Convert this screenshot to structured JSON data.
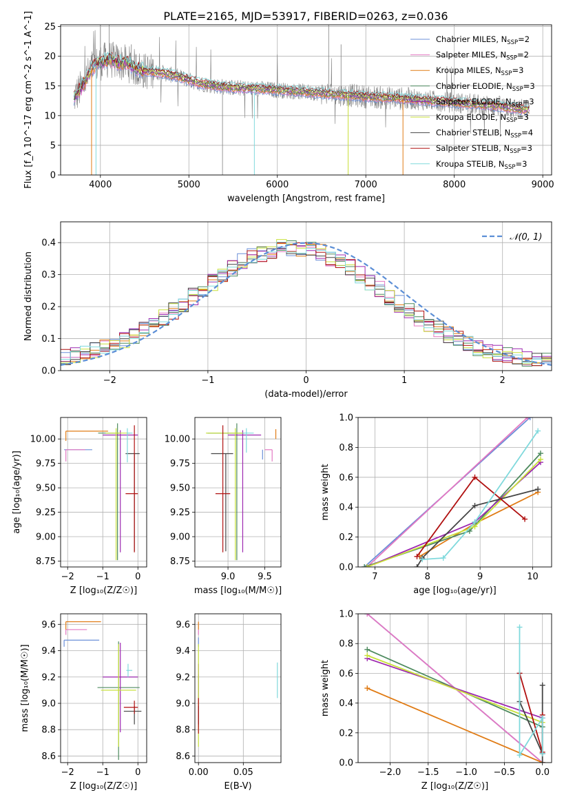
{
  "figure_title": "PLATE=2165, MJD=53917, FIBERID=0263, z=0.036",
  "colors": {
    "Chabrier MILES": "#6a8fd8",
    "Salpeter MILES": "#e377c2",
    "Kroupa MILES": "#e07b14",
    "Chabrier ELODIE": "#4d8a5e",
    "Salpeter ELODIE": "#9c27b0",
    "Kroupa ELODIE": "#c8e03a",
    "Chabrier STELIB": "#444444",
    "Salpeter STELIB": "#b01010",
    "Kroupa STELIB": "#7fd9dc",
    "data": "#7f7f7f",
    "gaussian": "#5b8ed6",
    "grid": "#b0b0b0"
  },
  "chart_data": [
    {
      "id": "spectrum",
      "type": "line",
      "title": "PLATE=2165, MJD=53917, FIBERID=0263, z=0.036",
      "xlabel": "wavelength [Angstrom, rest frame]",
      "ylabel": "Flux [f_λ 10^-17 erg cm^-2 s^-1 A^-1]",
      "xlim": [
        3550,
        9100
      ],
      "ylim": [
        0,
        25.3
      ],
      "xticks": [
        4000,
        5000,
        6000,
        7000,
        8000,
        9000
      ],
      "yticks": [
        0,
        5,
        10,
        15,
        20,
        25
      ],
      "legend": "top-right",
      "legend_entries": [
        {
          "label": "Chabrier MILES, N",
          "sub": "SSP",
          "tail": "=2"
        },
        {
          "label": "Salpeter MILES, N",
          "sub": "SSP",
          "tail": "=2"
        },
        {
          "label": "Kroupa MILES, N",
          "sub": "SSP",
          "tail": "=3"
        },
        {
          "label": "Chabrier ELODIE, N",
          "sub": "SSP",
          "tail": "=3"
        },
        {
          "label": "Salpeter ELODIE, N",
          "sub": "SSP",
          "tail": "=3"
        },
        {
          "label": "Kroupa ELODIE, N",
          "sub": "SSP",
          "tail": "=3"
        },
        {
          "label": "Chabrier STELIB, N",
          "sub": "SSP",
          "tail": "=4"
        },
        {
          "label": "Salpeter STELIB, N",
          "sub": "SSP",
          "tail": "=3"
        },
        {
          "label": "Kroupa STELIB, N",
          "sub": "SSP",
          "tail": "=3"
        }
      ],
      "continuum": {
        "x": [
          3700,
          3800,
          3900,
          4000,
          4100,
          4200,
          4300,
          4400,
          4500,
          4700,
          4900,
          5100,
          5300,
          5500,
          5800,
          6100,
          6500,
          7000,
          7500,
          8000,
          8500,
          8800
        ],
        "y": [
          13,
          15,
          18,
          19,
          19.5,
          19,
          18.8,
          18,
          17.5,
          17.2,
          16.5,
          15.5,
          15,
          14.7,
          14.5,
          14.2,
          13.8,
          13.2,
          12.8,
          12.2,
          11.6,
          11
        ]
      },
      "model_dropouts": [
        {
          "series": "Kroupa MILES",
          "x": 3900
        },
        {
          "series": "Kroupa ELODIE",
          "x": 6800
        },
        {
          "series": "Kroupa MILES",
          "x": 7420
        },
        {
          "series": "Kroupa STELIB",
          "x": 5740
        },
        {
          "series": "Kroupa STELIB",
          "x": 3950
        }
      ]
    },
    {
      "id": "residuals",
      "type": "line",
      "xlabel": "(data-model)/error",
      "ylabel": "Normed distribution",
      "xlim": [
        -2.5,
        2.5
      ],
      "ylim": [
        0,
        0.465
      ],
      "xticks": [
        -2,
        -1,
        0,
        1,
        2
      ],
      "yticks": [
        0.0,
        0.1,
        0.2,
        0.3,
        0.4
      ],
      "legend": "top-right",
      "gaussian_label": "𝒩(0, 1)",
      "bin_width": 0.1
    },
    {
      "id": "age_vs_Z",
      "type": "scatter",
      "xlabel": "Z [log₁₀(Z/Z☉)]",
      "ylabel": "age  [log₁₀(age/yr)]",
      "xlim": [
        -2.2,
        0.25
      ],
      "ylim": [
        8.69,
        10.22
      ],
      "xticks": [
        -2,
        -1,
        0
      ],
      "yticks": [
        8.75,
        9.0,
        9.25,
        9.5,
        9.75,
        10.0
      ],
      "points": [
        {
          "series": "Chabrier MILES",
          "x": -2.1,
          "xerr": [
            0,
            0.8
          ],
          "y": 9.89,
          "yerr": [
            0,
            0
          ]
        },
        {
          "series": "Salpeter MILES",
          "x": -2.05,
          "xerr": [
            0,
            0.55
          ],
          "y": 9.89,
          "yerr": [
            0.12,
            0
          ]
        },
        {
          "series": "Kroupa MILES",
          "x": -2.05,
          "xerr": [
            0,
            1.2
          ],
          "y": 10.08,
          "yerr": [
            0.1,
            0
          ]
        },
        {
          "series": "Chabrier ELODIE",
          "x": -0.58,
          "xerr": [
            0.55,
            0.05
          ],
          "y": 10.06,
          "yerr": [
            1.3,
            0.1
          ]
        },
        {
          "series": "Salpeter ELODIE",
          "x": -0.5,
          "xerr": [
            0.5,
            0.5
          ],
          "y": 10.04,
          "yerr": [
            1.2,
            0.05
          ]
        },
        {
          "series": "Kroupa ELODIE",
          "x": -0.62,
          "xerr": [
            0.3,
            0.4
          ],
          "y": 10.06,
          "yerr": [
            1.3,
            0.05
          ]
        },
        {
          "series": "Chabrier STELIB",
          "x": -0.1,
          "xerr": [
            0.25,
            0.15
          ],
          "y": 9.85,
          "yerr": [
            1.0,
            0
          ]
        },
        {
          "series": "Salpeter STELIB",
          "x": -0.1,
          "xerr": [
            0.25,
            0.1
          ],
          "y": 9.44,
          "yerr": [
            0.6,
            0.7
          ]
        },
        {
          "series": "Kroupa STELIB",
          "x": -0.3,
          "xerr": [
            0,
            0.15
          ],
          "y": 10.06,
          "yerr": [
            0.3,
            0.05
          ]
        }
      ]
    },
    {
      "id": "age_vs_mass",
      "type": "scatter",
      "xlabel": "mass [log₁₀(M/M☉)]",
      "ylabel": "",
      "xlim": [
        8.55,
        9.72
      ],
      "ylim": [
        8.69,
        10.22
      ],
      "xticks": [
        9.0,
        9.5
      ],
      "yticks": [
        8.75,
        9.0,
        9.25,
        9.5,
        9.75,
        10.0
      ],
      "points": [
        {
          "series": "Chabrier MILES",
          "x": 9.47,
          "xerr": [
            0,
            0
          ],
          "y": 9.89,
          "yerr": [
            0.1,
            0
          ]
        },
        {
          "series": "Salpeter MILES",
          "x": 9.6,
          "xerr": [
            0.1,
            0
          ],
          "y": 9.89,
          "yerr": [
            0.12,
            0
          ]
        },
        {
          "series": "Kroupa MILES",
          "x": 9.65,
          "xerr": [
            0,
            0
          ],
          "y": 10.0,
          "yerr": [
            0,
            0.1
          ]
        },
        {
          "series": "Chabrier ELODIE",
          "x": 9.12,
          "xerr": [
            0.4,
            0.1
          ],
          "y": 10.06,
          "yerr": [
            1.3,
            0.1
          ]
        },
        {
          "series": "Salpeter ELODIE",
          "x": 9.2,
          "xerr": [
            0.2,
            0.25
          ],
          "y": 10.04,
          "yerr": [
            1.2,
            0.05
          ]
        },
        {
          "series": "Kroupa ELODIE",
          "x": 9.1,
          "xerr": [
            0.4,
            0.1
          ],
          "y": 10.06,
          "yerr": [
            1.3,
            0.05
          ]
        },
        {
          "series": "Chabrier STELIB",
          "x": 8.97,
          "xerr": [
            0.2,
            0.1
          ],
          "y": 9.85,
          "yerr": [
            1.0,
            0
          ]
        },
        {
          "series": "Salpeter STELIB",
          "x": 8.93,
          "xerr": [
            0.1,
            0.1
          ],
          "y": 9.44,
          "yerr": [
            0.6,
            0.7
          ]
        },
        {
          "series": "Kroupa STELIB",
          "x": 9.25,
          "xerr": [
            0.05,
            0.1
          ],
          "y": 10.06,
          "yerr": [
            0.2,
            0.05
          ]
        }
      ]
    },
    {
      "id": "mass_weight_vs_age",
      "type": "line",
      "xlabel": "age  [log₁₀(age/yr)]",
      "ylabel": "mass weight",
      "xlim": [
        6.68,
        10.36
      ],
      "ylim": [
        0,
        1.0
      ],
      "xticks": [
        7,
        8,
        9,
        10
      ],
      "yticks": [
        0.0,
        0.2,
        0.4,
        0.6,
        0.8,
        1.0
      ],
      "series": [
        {
          "color_key": "Chabrier MILES",
          "x": [
            6.8,
            9.95
          ],
          "y": [
            0.0,
            1.0
          ]
        },
        {
          "color_key": "Salpeter MILES",
          "x": [
            6.85,
            9.9
          ],
          "y": [
            0.0,
            1.0
          ]
        },
        {
          "color_key": "Kroupa MILES",
          "x": [
            7.85,
            8.9,
            10.1
          ],
          "y": [
            0.07,
            0.29,
            0.5
          ]
        },
        {
          "color_key": "Chabrier ELODIE",
          "x": [
            6.8,
            8.8,
            10.15
          ],
          "y": [
            0.0,
            0.24,
            0.76
          ]
        },
        {
          "color_key": "Salpeter ELODIE",
          "x": [
            6.85,
            8.9,
            10.15
          ],
          "y": [
            0.0,
            0.3,
            0.7
          ]
        },
        {
          "color_key": "Kroupa ELODIE",
          "x": [
            6.85,
            8.9,
            10.15
          ],
          "y": [
            0.0,
            0.27,
            0.72
          ]
        },
        {
          "color_key": "Chabrier STELIB",
          "x": [
            7.8,
            7.9,
            8.9,
            10.1
          ],
          "y": [
            0.0,
            0.06,
            0.41,
            0.52
          ]
        },
        {
          "color_key": "Salpeter STELIB",
          "x": [
            7.8,
            8.9,
            9.85
          ],
          "y": [
            0.07,
            0.6,
            0.32
          ]
        },
        {
          "color_key": "Kroupa STELIB",
          "x": [
            7.9,
            8.3,
            8.9,
            10.1
          ],
          "y": [
            0.05,
            0.06,
            0.3,
            0.91
          ]
        }
      ]
    },
    {
      "id": "mass_vs_Z",
      "type": "scatter",
      "xlabel": "Z [log₁₀(Z/Z☉)]",
      "ylabel": "mass [log₁₀(M/M☉)]",
      "xlim": [
        -2.2,
        0.25
      ],
      "ylim": [
        8.55,
        9.68
      ],
      "xticks": [
        -2,
        -1,
        0
      ],
      "yticks": [
        8.6,
        8.8,
        9.0,
        9.2,
        9.4,
        9.6
      ],
      "points": [
        {
          "series": "Chabrier MILES",
          "x": -2.1,
          "xerr": [
            0,
            1.0
          ],
          "y": 9.48,
          "yerr": [
            0.05,
            0
          ]
        },
        {
          "series": "Salpeter MILES",
          "x": -2.05,
          "xerr": [
            0,
            0.6
          ],
          "y": 9.56,
          "yerr": [
            0.04,
            0
          ]
        },
        {
          "series": "Kroupa MILES",
          "x": -2.05,
          "xerr": [
            0,
            1.0
          ],
          "y": 9.62,
          "yerr": [
            0.06,
            0
          ]
        },
        {
          "series": "Chabrier ELODIE",
          "x": -0.55,
          "xerr": [
            0.6,
            0.6
          ],
          "y": 9.12,
          "yerr": [
            0.55,
            0.35
          ]
        },
        {
          "series": "Salpeter ELODIE",
          "x": -0.5,
          "xerr": [
            0.5,
            0.5
          ],
          "y": 9.2,
          "yerr": [
            0.42,
            0.26
          ]
        },
        {
          "series": "Kroupa ELODIE",
          "x": -0.55,
          "xerr": [
            0.5,
            0.5
          ],
          "y": 9.1,
          "yerr": [
            0.43,
            0.35
          ]
        },
        {
          "series": "Chabrier STELIB",
          "x": -0.1,
          "xerr": [
            0.3,
            0.2
          ],
          "y": 8.94,
          "yerr": [
            0.1,
            0.04
          ]
        },
        {
          "series": "Salpeter STELIB",
          "x": -0.1,
          "xerr": [
            0.3,
            0.1
          ],
          "y": 8.97,
          "yerr": [
            0.05,
            0.05
          ]
        },
        {
          "series": "Kroupa STELIB",
          "x": -0.28,
          "xerr": [
            0.05,
            0.12
          ],
          "y": 9.25,
          "yerr": [
            0.05,
            0.05
          ]
        }
      ]
    },
    {
      "id": "mass_vs_ebv",
      "type": "scatter",
      "xlabel": "E(B-V)",
      "ylabel": "",
      "xlim": [
        -0.004,
        0.092
      ],
      "ylim": [
        8.55,
        9.68
      ],
      "xticks": [
        0.0,
        0.05
      ],
      "yticks": [
        8.6,
        8.8,
        9.0,
        9.2,
        9.4,
        9.6
      ],
      "points": [
        {
          "series": "Chabrier MILES",
          "x": 0.0,
          "xerr": [
            0,
            0
          ],
          "y": 9.48,
          "yerr": [
            0.05,
            0.02
          ]
        },
        {
          "series": "Salpeter MILES",
          "x": 0.0,
          "xerr": [
            0,
            0
          ],
          "y": 9.56,
          "yerr": [
            0.04,
            0
          ]
        },
        {
          "series": "Kroupa MILES",
          "x": 0.0,
          "xerr": [
            0,
            0
          ],
          "y": 9.62,
          "yerr": [
            0.06,
            0
          ]
        },
        {
          "series": "Chabrier ELODIE",
          "x": 0.0,
          "xerr": [
            0,
            0
          ],
          "y": 9.12,
          "yerr": [
            0.3,
            0.1
          ]
        },
        {
          "series": "Salpeter ELODIE",
          "x": 0.0,
          "xerr": [
            0,
            0
          ],
          "y": 9.2,
          "yerr": [
            0.2,
            0.1
          ]
        },
        {
          "series": "Kroupa ELODIE",
          "x": 0.0,
          "xerr": [
            0,
            0
          ],
          "y": 9.1,
          "yerr": [
            0.43,
            0.35
          ]
        },
        {
          "series": "Chabrier STELIB",
          "x": 0.0,
          "xerr": [
            0,
            0
          ],
          "y": 8.94,
          "yerr": [
            0.1,
            0.04
          ]
        },
        {
          "series": "Salpeter STELIB",
          "x": 0.0,
          "xerr": [
            0,
            0
          ],
          "y": 8.97,
          "yerr": [
            0.2,
            0.07
          ]
        },
        {
          "series": "Kroupa STELIB",
          "x": 0.088,
          "xerr": [
            0,
            0
          ],
          "y": 9.17,
          "yerr": [
            0.13,
            0.14
          ]
        }
      ]
    },
    {
      "id": "mass_weight_vs_Z",
      "type": "line",
      "xlabel": "Z [log₁₀(Z/Z☉)]",
      "ylabel": "mass weight",
      "xlim": [
        -2.42,
        0.12
      ],
      "ylim": [
        0,
        1.0
      ],
      "xticks": [
        -2.0,
        -1.5,
        -1.0,
        -0.5,
        0.0
      ],
      "yticks": [
        0.0,
        0.2,
        0.4,
        0.6,
        0.8,
        1.0
      ],
      "series": [
        {
          "color_key": "Chabrier MILES",
          "x": [
            -2.3,
            0.0
          ],
          "y": [
            1.0,
            0.0
          ]
        },
        {
          "color_key": "Salpeter MILES",
          "x": [
            -2.3,
            0.0
          ],
          "y": [
            1.0,
            0.0
          ]
        },
        {
          "color_key": "Kroupa MILES",
          "x": [
            -2.3,
            0.0
          ],
          "y": [
            0.5,
            0.0
          ]
        },
        {
          "color_key": "Chabrier ELODIE",
          "x": [
            -2.3,
            0.0
          ],
          "y": [
            0.76,
            0.24
          ]
        },
        {
          "color_key": "Salpeter ELODIE",
          "x": [
            -2.3,
            0.0
          ],
          "y": [
            0.7,
            0.3
          ]
        },
        {
          "color_key": "Kroupa ELODIE",
          "x": [
            -2.3,
            0.0
          ],
          "y": [
            0.72,
            0.27
          ]
        },
        {
          "color_key": "Chabrier STELIB",
          "x": [
            -0.3,
            -0.3,
            0.0,
            0.0,
            0.0
          ],
          "y": [
            0.6,
            0.41,
            0.06,
            0.52,
            0.0
          ]
        },
        {
          "color_key": "Salpeter STELIB",
          "x": [
            -0.3,
            0.0,
            0.0
          ],
          "y": [
            0.6,
            0.07,
            0.32
          ]
        },
        {
          "color_key": "Kroupa STELIB",
          "x": [
            -0.3,
            -0.3,
            0.0,
            0.0
          ],
          "y": [
            0.91,
            0.05,
            0.3,
            0.06
          ]
        }
      ]
    }
  ]
}
